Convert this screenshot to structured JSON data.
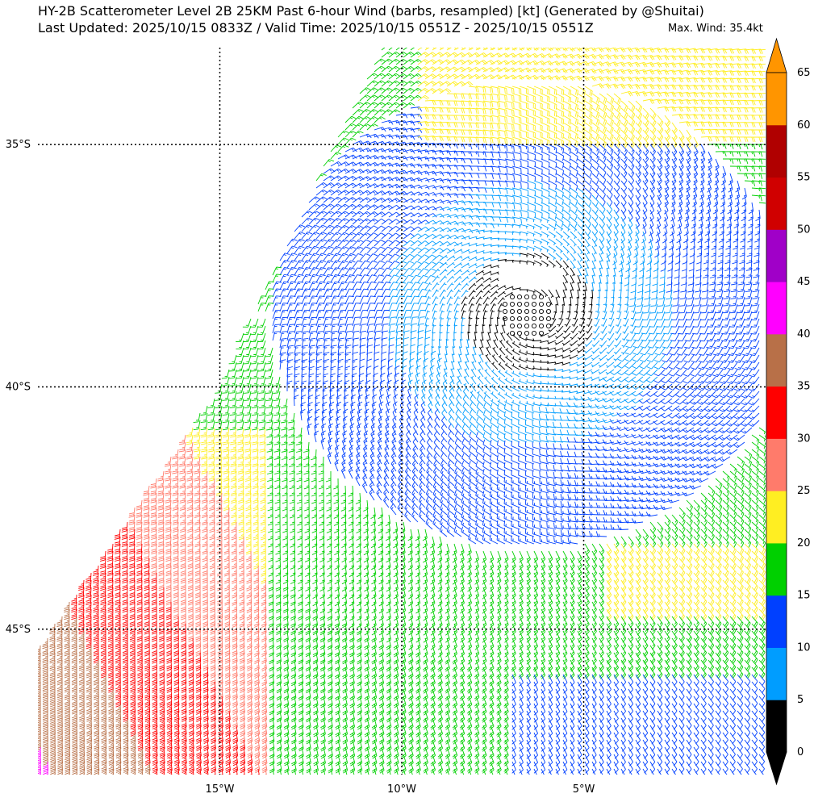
{
  "header": {
    "title_line1": "HY-2B Scatterometer Level 2B 25KM Past 6-hour Wind (barbs, resampled) [kt] (Generated by @Shuitai)",
    "title_line2": "Last Updated: 2025/10/15 0833Z / Valid Time: 2025/10/15 0551Z - 2025/10/15 0551Z",
    "max_wind": "Max. Wind: 35.4kt"
  },
  "map": {
    "lon_range": [
      -20,
      0
    ],
    "lat_range": [
      -48,
      -33
    ],
    "lon_ticks": [
      {
        "value": -15,
        "label": "15°W"
      },
      {
        "value": -10,
        "label": "10°W"
      },
      {
        "value": -5,
        "label": "5°W"
      }
    ],
    "lat_ticks": [
      {
        "value": -35,
        "label": "35°S"
      },
      {
        "value": -40,
        "label": "40°S"
      },
      {
        "value": -45,
        "label": "45°S"
      }
    ],
    "grid": true,
    "cyclone_center": {
      "lon": -6.5,
      "lat": -38.5
    }
  },
  "colorbar": {
    "ticks": [
      "0",
      "5",
      "10",
      "15",
      "20",
      "25",
      "30",
      "35",
      "40",
      "45",
      "50",
      "55",
      "60",
      "65"
    ],
    "bins": [
      {
        "min": 0,
        "max": 5,
        "color": "#000000"
      },
      {
        "min": 5,
        "max": 10,
        "color": "#009dff"
      },
      {
        "min": 10,
        "max": 15,
        "color": "#0040ff"
      },
      {
        "min": 15,
        "max": 20,
        "color": "#00d000"
      },
      {
        "min": 20,
        "max": 25,
        "color": "#ffee22"
      },
      {
        "min": 25,
        "max": 30,
        "color": "#ff7b6b"
      },
      {
        "min": 30,
        "max": 35,
        "color": "#ff0000"
      },
      {
        "min": 35,
        "max": 40,
        "color": "#b87048"
      },
      {
        "min": 40,
        "max": 45,
        "color": "#ff00ff"
      },
      {
        "min": 45,
        "max": 50,
        "color": "#a000c8"
      },
      {
        "min": 50,
        "max": 55,
        "color": "#d00000"
      },
      {
        "min": 55,
        "max": 60,
        "color": "#b00000"
      },
      {
        "min": 60,
        "max": 65,
        "color": "#ff9500"
      }
    ],
    "extend_low_color": "#000000",
    "extend_high_color": "#ff9500"
  }
}
